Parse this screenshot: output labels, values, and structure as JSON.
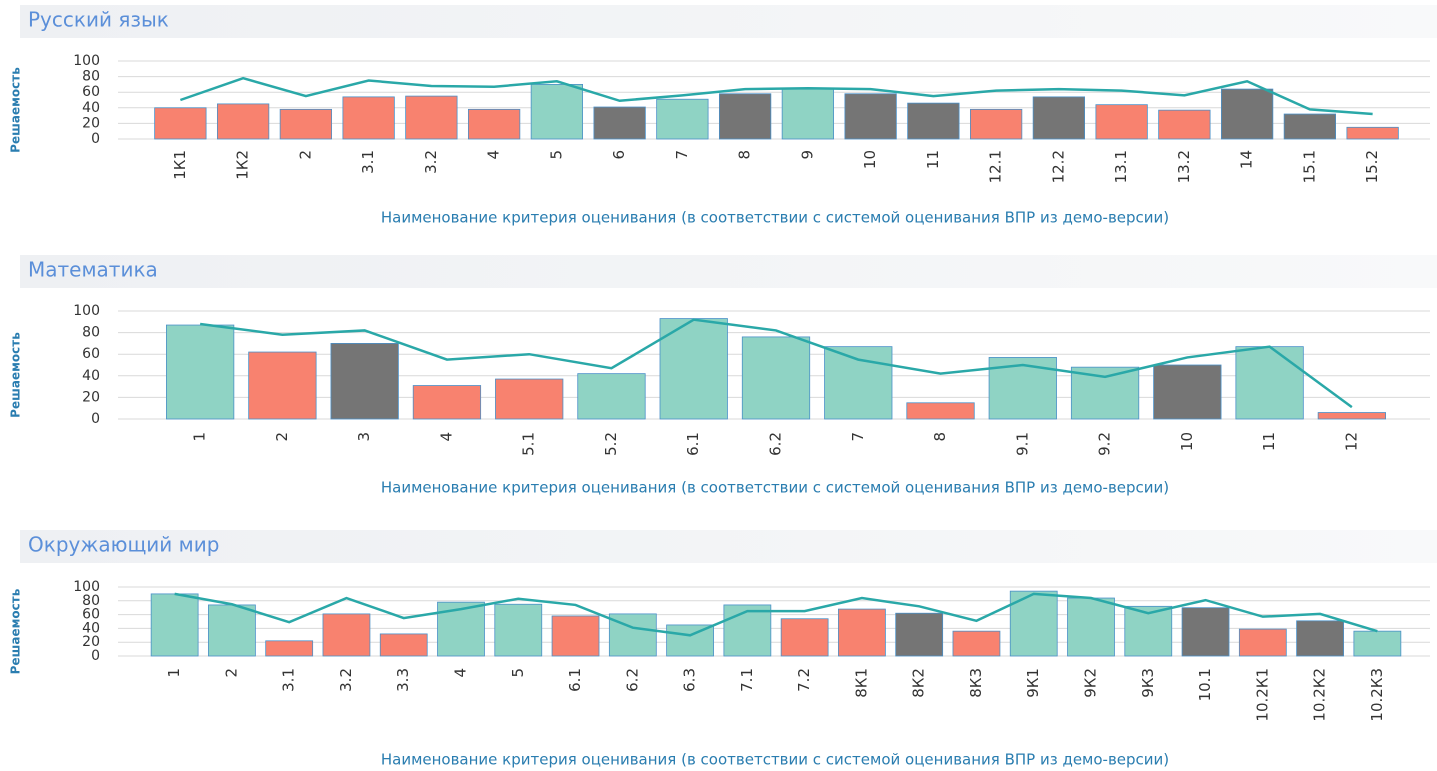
{
  "chart_data": [
    {
      "type": "bar",
      "title": "Русский язык",
      "ylabel": "Решаемость",
      "xlabel": "Наименование критерия оценивания (в соответствии с системой оценивания ВПР из демо-версии)",
      "categories": [
        "1К1",
        "1К2",
        "2",
        "3.1",
        "3.2",
        "4",
        "5",
        "6",
        "7",
        "8",
        "9",
        "10",
        "11",
        "12.1",
        "12.2",
        "13.1",
        "13.2",
        "14",
        "15.1",
        "15.2"
      ],
      "series": [
        {
          "type": "bar",
          "values": [
            40,
            45,
            38,
            54,
            55,
            38,
            70,
            41,
            51,
            58,
            65,
            58,
            46,
            38,
            54,
            44,
            37,
            64,
            32,
            15
          ],
          "colors": [
            "#f8826f",
            "#f8826f",
            "#f8826f",
            "#f8826f",
            "#f8826f",
            "#f8826f",
            "#8fd3c4",
            "#757575",
            "#8fd3c4",
            "#757575",
            "#8fd3c4",
            "#757575",
            "#757575",
            "#f8826f",
            "#757575",
            "#f8826f",
            "#f8826f",
            "#757575",
            "#757575",
            "#f8826f"
          ]
        },
        {
          "type": "line",
          "color": "#2aa8a8",
          "values": [
            50,
            78,
            55,
            75,
            68,
            67,
            74,
            49,
            56,
            64,
            65,
            64,
            55,
            62,
            64,
            62,
            56,
            74,
            38,
            32
          ]
        }
      ],
      "ylim": [
        0,
        100
      ],
      "yticks": [
        0,
        20,
        40,
        60,
        80,
        100
      ],
      "grid": true
    },
    {
      "type": "bar",
      "title": "Математика",
      "ylabel": "Решаемость",
      "xlabel": "Наименование критерия оценивания (в соответствии с системой оценивания ВПР из демо-версии)",
      "categories": [
        "1",
        "2",
        "3",
        "4",
        "5.1",
        "5.2",
        "6.1",
        "6.2",
        "7",
        "8",
        "9.1",
        "9.2",
        "10",
        "11",
        "12"
      ],
      "series": [
        {
          "type": "bar",
          "values": [
            87,
            62,
            70,
            31,
            37,
            42,
            93,
            76,
            67,
            15,
            57,
            48,
            50,
            67,
            6
          ],
          "colors": [
            "#8fd3c4",
            "#f8826f",
            "#757575",
            "#f8826f",
            "#f8826f",
            "#8fd3c4",
            "#8fd3c4",
            "#8fd3c4",
            "#8fd3c4",
            "#f8826f",
            "#8fd3c4",
            "#8fd3c4",
            "#757575",
            "#8fd3c4",
            "#f8826f"
          ]
        },
        {
          "type": "line",
          "color": "#2aa8a8",
          "values": [
            88,
            78,
            82,
            55,
            60,
            47,
            92,
            82,
            55,
            42,
            50,
            39,
            57,
            67,
            11
          ]
        }
      ],
      "ylim": [
        0,
        100
      ],
      "yticks": [
        0,
        20,
        40,
        60,
        80,
        100
      ],
      "grid": true
    },
    {
      "type": "bar",
      "title": "Окружающий мир",
      "ylabel": "Решаемость",
      "xlabel": "Наименование критерия оценивания (в соответствии с системой оценивания ВПР из демо-версии)",
      "categories": [
        "1",
        "2",
        "3.1",
        "3.2",
        "3.3",
        "4",
        "5",
        "6.1",
        "6.2",
        "6.3",
        "7.1",
        "7.2",
        "8К1",
        "8К2",
        "8К3",
        "9К1",
        "9К2",
        "9К3",
        "10.1",
        "10.2К1",
        "10.2К2",
        "10.2К3"
      ],
      "series": [
        {
          "type": "bar",
          "values": [
            90,
            74,
            22,
            61,
            32,
            78,
            75,
            58,
            61,
            45,
            74,
            54,
            68,
            62,
            36,
            94,
            84,
            72,
            70,
            39,
            51,
            36
          ],
          "colors": [
            "#8fd3c4",
            "#8fd3c4",
            "#f8826f",
            "#f8826f",
            "#f8826f",
            "#8fd3c4",
            "#8fd3c4",
            "#f8826f",
            "#8fd3c4",
            "#8fd3c4",
            "#8fd3c4",
            "#f8826f",
            "#f8826f",
            "#757575",
            "#f8826f",
            "#8fd3c4",
            "#8fd3c4",
            "#8fd3c4",
            "#757575",
            "#f8826f",
            "#757575",
            "#8fd3c4"
          ]
        },
        {
          "type": "line",
          "color": "#2aa8a8",
          "values": [
            90,
            75,
            49,
            84,
            55,
            68,
            83,
            74,
            41,
            30,
            65,
            65,
            84,
            72,
            51,
            90,
            84,
            62,
            81,
            57,
            61,
            36
          ]
        }
      ],
      "ylim": [
        0,
        100
      ],
      "yticks": [
        0,
        20,
        40,
        60,
        80,
        100
      ],
      "grid": true
    }
  ]
}
